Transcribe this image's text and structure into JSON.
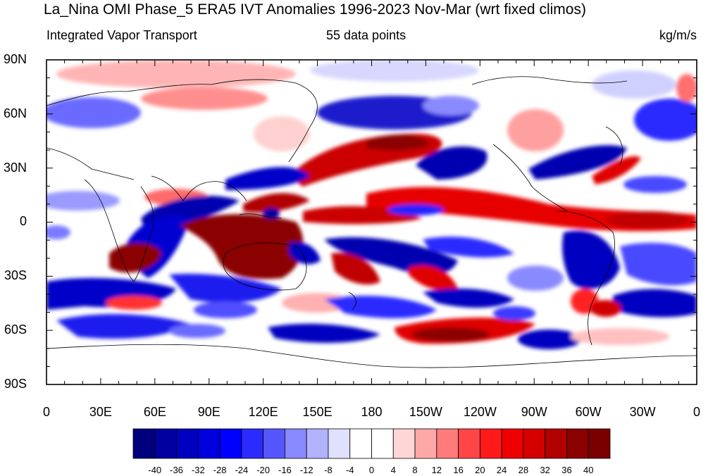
{
  "title": "La_Nina OMI Phase_5 ERA5 IVT Anomalies 1996-2023 Nov-Mar (wrt fixed climos)",
  "subtitle_left": "Integrated Vapor Transport",
  "subtitle_center": "55 data points",
  "subtitle_right": "kg/m/s",
  "lat_ticks": [
    "90N",
    "60N",
    "30N",
    "0",
    "30S",
    "60S",
    "90S"
  ],
  "lon_ticks": [
    "0",
    "30E",
    "60E",
    "90E",
    "120E",
    "150E",
    "180",
    "150W",
    "120W",
    "90W",
    "60W",
    "30W",
    "0"
  ],
  "colorbar": {
    "labels": [
      "-40",
      "-36",
      "-32",
      "-28",
      "-24",
      "-20",
      "-16",
      "-12",
      "-8",
      "-4",
      "0",
      "4",
      "8",
      "12",
      "16",
      "20",
      "24",
      "28",
      "32",
      "36",
      "40"
    ],
    "colors": [
      "#00007f",
      "#0000a0",
      "#0000c0",
      "#0000df",
      "#0000ff",
      "#2b2bff",
      "#5656ff",
      "#8989ff",
      "#b2b2ff",
      "#e0e0ff",
      "#ffffff",
      "#ffffff",
      "#ffd6d6",
      "#ffa8a8",
      "#ff7a7a",
      "#ff4545",
      "#ff1a1a",
      "#ee0000",
      "#d40000",
      "#b00000",
      "#8b0000"
    ]
  },
  "colors": {
    "strong_positive": "#8b0000",
    "positive": "#ee0000",
    "weak_positive": "#ff9a9a",
    "strong_negative": "#0000b0",
    "negative": "#1a1aff",
    "weak_negative": "#b2b2ff",
    "coastline": "#000000"
  }
}
